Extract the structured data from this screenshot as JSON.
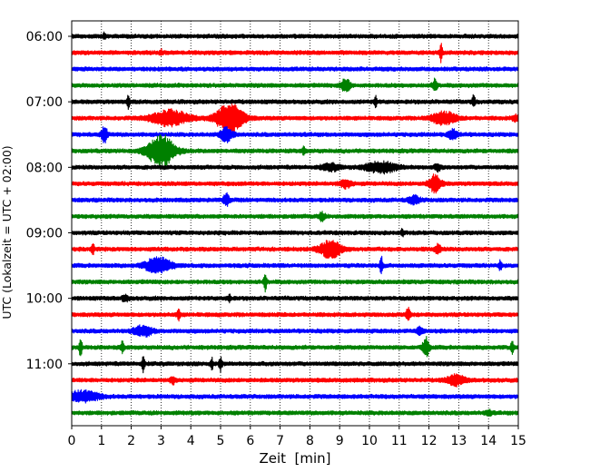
{
  "chart_data": {
    "type": "line",
    "title": "",
    "xlabel": "Zeit  [min]",
    "ylabel": "UTC (Lokalzeit = UTC + 02:00)",
    "xlim": [
      0,
      15
    ],
    "xticks": [
      "0",
      "1",
      "2",
      "3",
      "4",
      "5",
      "6",
      "7",
      "8",
      "9",
      "10",
      "11",
      "12",
      "13",
      "14",
      "15"
    ],
    "yticks": [
      "06:00",
      "07:00",
      "08:00",
      "09:00",
      "10:00",
      "11:00"
    ],
    "grid": "vertical dotted lines at each minute",
    "rows_per_hour": 4,
    "row_interval_min": 15,
    "colors": [
      "#000000",
      "#ff0000",
      "#0000ff",
      "#008000"
    ],
    "series": [
      {
        "start": "06:00",
        "color": "#000000",
        "events": [
          {
            "t": 1.1,
            "a": 0.45,
            "w": 0.05
          }
        ]
      },
      {
        "start": "06:15",
        "color": "#ff0000",
        "events": [
          {
            "t": 12.4,
            "a": 1.4,
            "w": 0.05
          },
          {
            "t": 3.0,
            "a": 0.4,
            "w": 0.05
          }
        ]
      },
      {
        "start": "06:30",
        "color": "#0000ff",
        "events": []
      },
      {
        "start": "06:45",
        "color": "#008000",
        "events": [
          {
            "t": 9.2,
            "a": 1.1,
            "w": 0.15
          },
          {
            "t": 12.2,
            "a": 1.0,
            "w": 0.08
          }
        ]
      },
      {
        "start": "07:00",
        "color": "#000000",
        "events": [
          {
            "t": 1.9,
            "a": 0.9,
            "w": 0.05
          },
          {
            "t": 10.2,
            "a": 0.9,
            "w": 0.05
          },
          {
            "t": 13.5,
            "a": 1.0,
            "w": 0.05
          }
        ]
      },
      {
        "start": "07:15",
        "color": "#ff0000",
        "events": [
          {
            "t": 3.3,
            "a": 1.3,
            "w": 0.6
          },
          {
            "t": 5.3,
            "a": 2.4,
            "w": 0.45
          },
          {
            "t": 12.5,
            "a": 1.0,
            "w": 0.4
          },
          {
            "t": 14.9,
            "a": 0.5,
            "w": 0.1
          }
        ]
      },
      {
        "start": "07:30",
        "color": "#0000ff",
        "events": [
          {
            "t": 1.1,
            "a": 1.3,
            "w": 0.1
          },
          {
            "t": 5.2,
            "a": 1.2,
            "w": 0.2
          },
          {
            "t": 12.8,
            "a": 0.8,
            "w": 0.15
          }
        ]
      },
      {
        "start": "07:45",
        "color": "#008000",
        "events": [
          {
            "t": 3.0,
            "a": 2.6,
            "w": 0.45
          },
          {
            "t": 7.8,
            "a": 0.7,
            "w": 0.05
          }
        ]
      },
      {
        "start": "08:00",
        "color": "#000000",
        "events": [
          {
            "t": 8.7,
            "a": 0.5,
            "w": 0.3
          },
          {
            "t": 10.4,
            "a": 0.9,
            "w": 0.5
          },
          {
            "t": 12.3,
            "a": 0.5,
            "w": 0.1
          }
        ]
      },
      {
        "start": "08:15",
        "color": "#ff0000",
        "events": [
          {
            "t": 12.2,
            "a": 1.4,
            "w": 0.2
          },
          {
            "t": 9.2,
            "a": 0.6,
            "w": 0.2
          }
        ]
      },
      {
        "start": "08:30",
        "color": "#0000ff",
        "events": [
          {
            "t": 5.2,
            "a": 1.0,
            "w": 0.1
          },
          {
            "t": 11.5,
            "a": 0.6,
            "w": 0.2
          }
        ]
      },
      {
        "start": "08:45",
        "color": "#008000",
        "events": [
          {
            "t": 8.4,
            "a": 0.6,
            "w": 0.1
          }
        ]
      },
      {
        "start": "09:00",
        "color": "#000000",
        "events": [
          {
            "t": 11.1,
            "a": 0.5,
            "w": 0.05
          }
        ]
      },
      {
        "start": "09:15",
        "color": "#ff0000",
        "events": [
          {
            "t": 0.7,
            "a": 1.2,
            "w": 0.05
          },
          {
            "t": 8.7,
            "a": 1.4,
            "w": 0.35
          },
          {
            "t": 12.3,
            "a": 0.7,
            "w": 0.1
          }
        ]
      },
      {
        "start": "09:30",
        "color": "#0000ff",
        "events": [
          {
            "t": 2.9,
            "a": 1.4,
            "w": 0.4
          },
          {
            "t": 10.4,
            "a": 1.5,
            "w": 0.05
          },
          {
            "t": 14.4,
            "a": 0.8,
            "w": 0.05
          }
        ]
      },
      {
        "start": "09:45",
        "color": "#008000",
        "events": [
          {
            "t": 6.5,
            "a": 1.6,
            "w": 0.05
          }
        ]
      },
      {
        "start": "10:00",
        "color": "#000000",
        "events": [
          {
            "t": 1.8,
            "a": 0.5,
            "w": 0.1
          },
          {
            "t": 5.3,
            "a": 0.6,
            "w": 0.05
          }
        ]
      },
      {
        "start": "10:15",
        "color": "#ff0000",
        "events": [
          {
            "t": 3.6,
            "a": 1.0,
            "w": 0.05
          },
          {
            "t": 11.3,
            "a": 1.0,
            "w": 0.08
          }
        ]
      },
      {
        "start": "10:30",
        "color": "#0000ff",
        "events": [
          {
            "t": 2.4,
            "a": 0.8,
            "w": 0.3
          },
          {
            "t": 11.7,
            "a": 0.6,
            "w": 0.1
          }
        ]
      },
      {
        "start": "10:45",
        "color": "#008000",
        "events": [
          {
            "t": 0.3,
            "a": 1.4,
            "w": 0.05
          },
          {
            "t": 1.7,
            "a": 1.0,
            "w": 0.05
          },
          {
            "t": 11.9,
            "a": 1.8,
            "w": 0.1
          },
          {
            "t": 14.8,
            "a": 1.0,
            "w": 0.05
          }
        ]
      },
      {
        "start": "11:00",
        "color": "#000000",
        "events": [
          {
            "t": 2.4,
            "a": 1.3,
            "w": 0.05
          },
          {
            "t": 4.7,
            "a": 1.0,
            "w": 0.05
          },
          {
            "t": 5.0,
            "a": 1.2,
            "w": 0.05
          }
        ]
      },
      {
        "start": "11:15",
        "color": "#ff0000",
        "events": [
          {
            "t": 3.4,
            "a": 0.5,
            "w": 0.1
          },
          {
            "t": 12.9,
            "a": 0.8,
            "w": 0.3
          }
        ]
      },
      {
        "start": "11:30",
        "color": "#0000ff",
        "events": [
          {
            "t": 0.4,
            "a": 0.9,
            "w": 0.5
          }
        ]
      },
      {
        "start": "11:45",
        "color": "#008000",
        "events": [
          {
            "t": 14.0,
            "a": 0.4,
            "w": 0.1
          }
        ]
      }
    ]
  }
}
